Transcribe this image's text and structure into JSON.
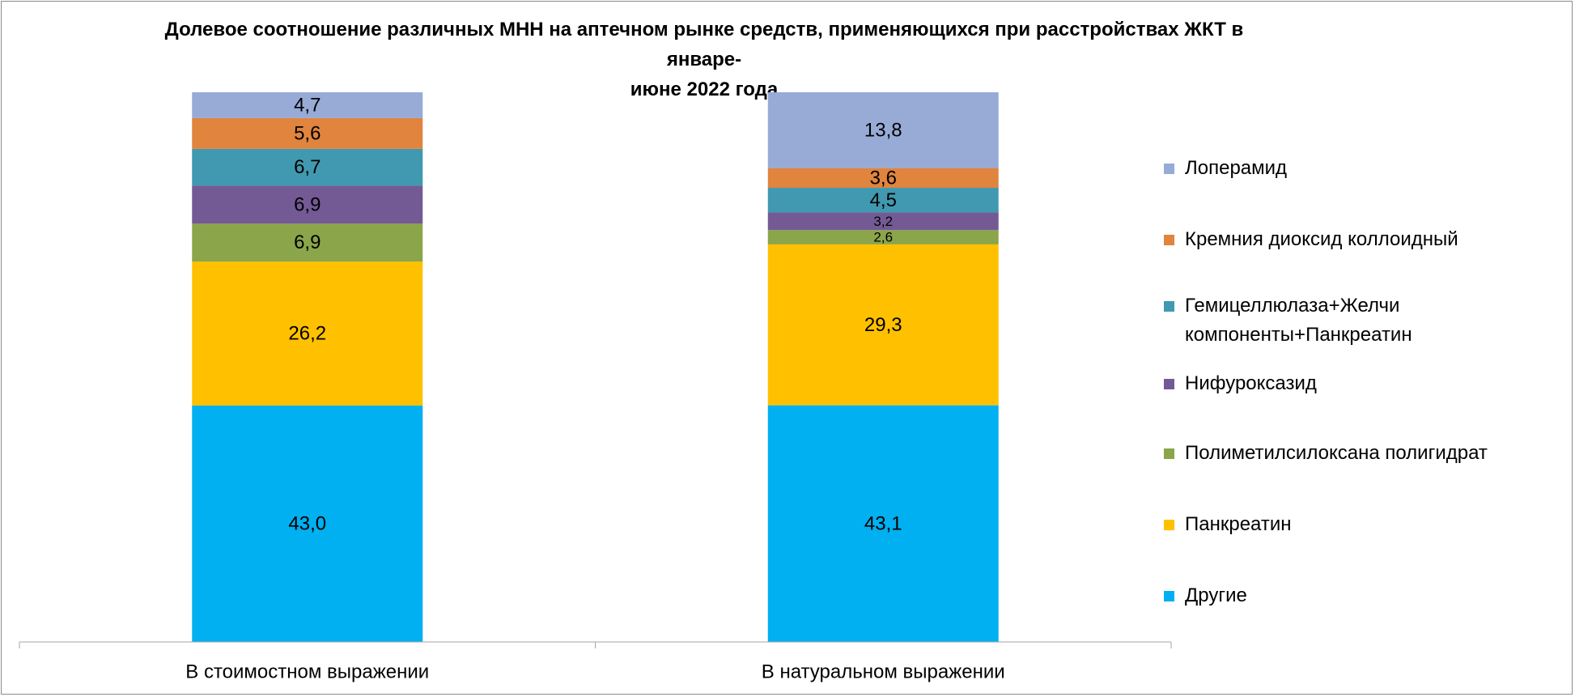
{
  "chart_data": {
    "type": "bar",
    "stacked": true,
    "title": "Долевое соотношение различных МНН на аптечном рынке средств, применяющихся при расстройствах ЖКТ в январе-\nиюне 2022 года",
    "categories": [
      "В стоимостном выражении",
      "В натуральном выражении"
    ],
    "series": [
      {
        "name": "Другие",
        "color": "#00b0f0",
        "values": [
          43.0,
          43.1
        ],
        "labels": [
          "43,0",
          "43,1"
        ]
      },
      {
        "name": "Панкреатин",
        "color": "#ffc000",
        "values": [
          26.2,
          29.3
        ],
        "labels": [
          "26,2",
          "29,3"
        ]
      },
      {
        "name": "Полиметилсилоксана полигидрат",
        "color": "#8ba54a",
        "values": [
          6.9,
          2.6
        ],
        "labels": [
          "6,9",
          "2,6"
        ]
      },
      {
        "name": "Нифуроксазид",
        "color": "#735a95",
        "values": [
          6.9,
          3.2
        ],
        "labels": [
          "6,9",
          "3,2"
        ]
      },
      {
        "name": "Гемицеллюлаза+Желчи\nкомпоненты+Панкреатин",
        "color": "#4099b0",
        "values": [
          6.7,
          4.5
        ],
        "labels": [
          "6,7",
          "4,5"
        ]
      },
      {
        "name": "Кремния диоксид коллоидный",
        "color": "#e0843e",
        "values": [
          5.6,
          3.6
        ],
        "labels": [
          "5,6",
          "3,6"
        ]
      },
      {
        "name": "Лоперамид",
        "color": "#97abd6",
        "values": [
          4.7,
          13.8
        ],
        "labels": [
          "4,7",
          "13,8"
        ]
      }
    ],
    "legend_position": "right",
    "legend_order": "top-to-bottom reverse of stack",
    "grid": false
  }
}
